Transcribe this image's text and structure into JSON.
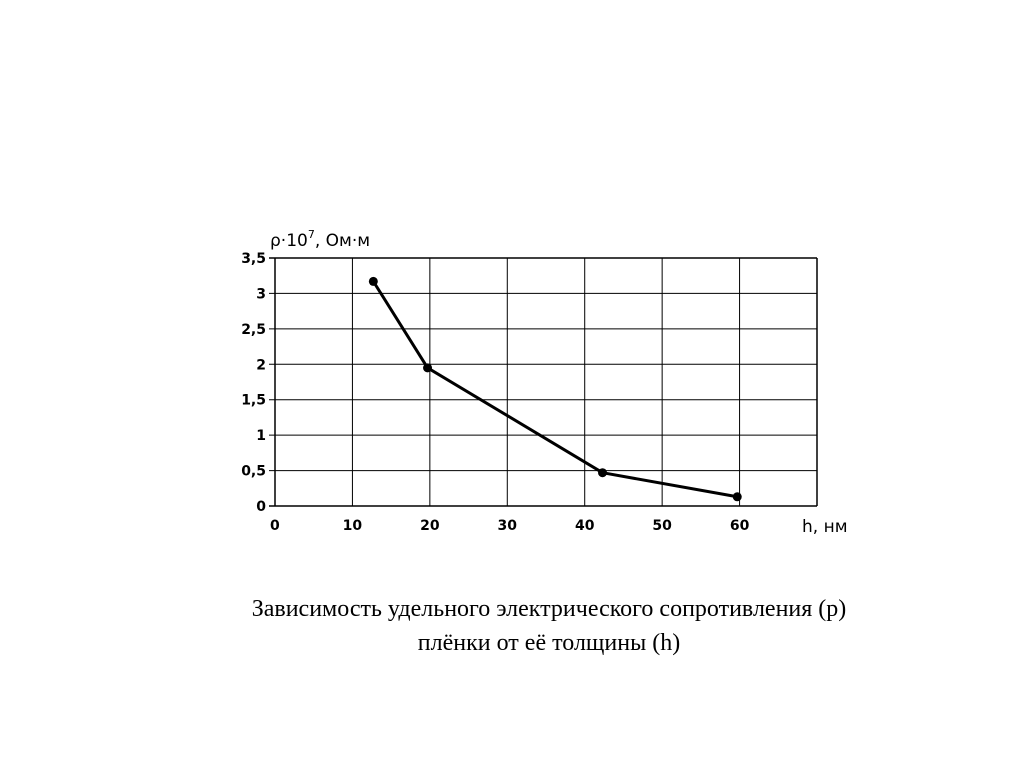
{
  "chart_data": {
    "type": "line",
    "ylabel": "ρ·10",
    "ylabel_exp": "7",
    "ylabel_unit": ", Ом·м",
    "xlabel": "h, нм",
    "xlim": [
      0,
      70
    ],
    "ylim": [
      0,
      3.5
    ],
    "x_ticks": [
      0,
      10,
      20,
      30,
      40,
      50,
      60
    ],
    "x_tick_labels": [
      "0",
      "10",
      "20",
      "30",
      "40",
      "50",
      "60"
    ],
    "y_ticks": [
      0,
      0.5,
      1,
      1.5,
      2,
      2.5,
      3,
      3.5
    ],
    "y_tick_labels": [
      "0",
      "0,5",
      "1",
      "1,5",
      "2",
      "2,5",
      "3",
      "3,5"
    ],
    "grid": true,
    "series": [
      {
        "x": [
          12.7,
          19.7,
          42.3,
          59.7
        ],
        "y": [
          3.17,
          1.95,
          0.47,
          0.13
        ]
      }
    ],
    "color": "#000000"
  },
  "caption": {
    "line1": "Зависимость удельного электрического сопротивления (р)",
    "line2": "плёнки от её толщины (h)"
  }
}
